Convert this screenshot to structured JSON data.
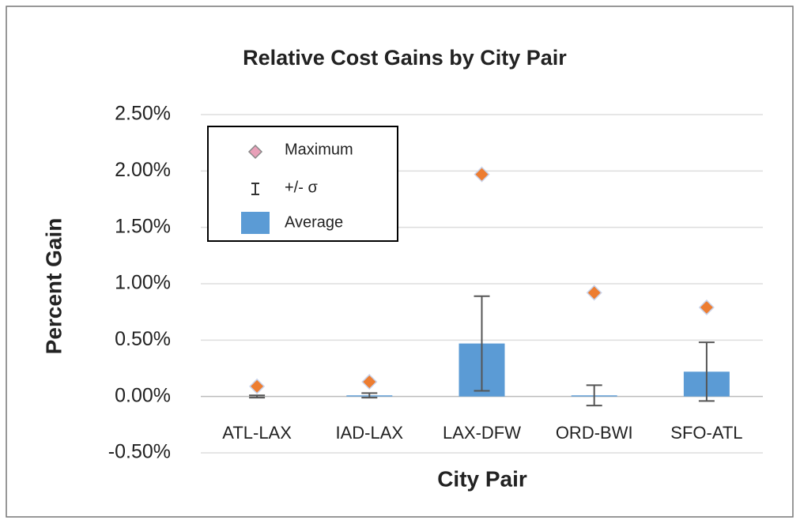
{
  "chart_data": {
    "type": "bar",
    "title": "Relative Cost Gains by City Pair",
    "x_label": "City Pair",
    "y_label": "Percent Gain",
    "categories": [
      "ATL-LAX",
      "IAD-LAX",
      "LAX-DFW",
      "ORD-BWI",
      "SFO-ATL"
    ],
    "series": [
      {
        "name": "Maximum",
        "color": "#ed7d31",
        "values": [
          0.09,
          0.13,
          1.97,
          0.92,
          0.79
        ]
      },
      {
        "name": "Average",
        "color": "#5b9bd5",
        "values": [
          0.0,
          0.01,
          0.47,
          0.01,
          0.22
        ]
      }
    ],
    "error_bars": {
      "name": "+/- σ",
      "color": "#555555",
      "values": [
        0.01,
        0.02,
        0.42,
        0.09,
        0.26
      ]
    },
    "ylim": [
      -0.5,
      2.5
    ],
    "yticks": [
      {
        "value": -0.5,
        "label": "-0.50%"
      },
      {
        "value": 0,
        "label": "0.00%"
      },
      {
        "value": 0.5,
        "label": "0.50%"
      },
      {
        "value": 1,
        "label": "1.00%"
      },
      {
        "value": 1.5,
        "label": "1.50%"
      },
      {
        "value": 2,
        "label": "2.00%"
      },
      {
        "value": 2.5,
        "label": "2.50%"
      }
    ],
    "grid": true,
    "legend": "upper left"
  }
}
